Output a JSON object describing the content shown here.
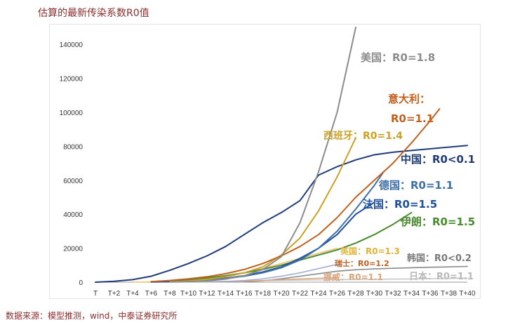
{
  "page": {
    "title": "估算的最新传染系数R0值",
    "source": "数据来源：模型推测，wind，中泰证券研究所"
  },
  "chart_data": {
    "type": "line",
    "title": "",
    "xlabel": "",
    "ylabel": "",
    "ylim": [
      0,
      150000
    ],
    "yticks": [
      0,
      20000,
      40000,
      60000,
      80000,
      100000,
      120000,
      140000
    ],
    "xticks": [
      "T",
      "T+2",
      "T+4",
      "T+6",
      "T+8",
      "T+10",
      "T+12",
      "T+14",
      "T+16",
      "T+18",
      "T+20",
      "T+22",
      "T+24",
      "T+26",
      "T+28",
      "T+30",
      "T+32",
      "T+34",
      "T+36",
      "T+38",
      "T+40"
    ],
    "grid": false,
    "series": [
      {
        "name": "中国",
        "color": "#1f3c78",
        "width": 2,
        "x": [
          0,
          2,
          4,
          6,
          8,
          10,
          12,
          14,
          16,
          18,
          20,
          22,
          24,
          26,
          28,
          30,
          32,
          34,
          36,
          38,
          40
        ],
        "y": [
          0,
          500,
          1500,
          3500,
          7000,
          11000,
          15500,
          21000,
          28000,
          35000,
          41000,
          48000,
          63000,
          68000,
          72000,
          75000,
          76500,
          77500,
          78500,
          79500,
          80500
        ]
      },
      {
        "name": "韩国",
        "color": "#8a8a8a",
        "width": 1.6,
        "x": [
          16,
          18,
          20,
          22,
          24,
          26,
          28,
          30,
          32,
          34,
          36,
          38,
          40
        ],
        "y": [
          200,
          800,
          2000,
          3500,
          5000,
          6500,
          7300,
          7800,
          8200,
          8500,
          8800,
          9000,
          9300
        ]
      },
      {
        "name": "日本",
        "color": "#c8c8c8",
        "width": 1.6,
        "x": [
          8,
          10,
          12,
          14,
          16,
          18,
          20,
          22,
          24,
          26,
          28,
          30,
          32,
          34,
          36,
          38,
          40
        ],
        "y": [
          100,
          250,
          400,
          500,
          700,
          900,
          1050,
          1200,
          1350,
          1500,
          1600,
          1700,
          1800,
          1900,
          2050,
          2200,
          2400
        ]
      },
      {
        "name": "挪威",
        "color": "#d9a47a",
        "width": 1.5,
        "x": [
          12,
          14,
          16,
          18,
          20,
          22,
          24,
          26
        ],
        "y": [
          100,
          300,
          600,
          1000,
          1500,
          1900,
          2300,
          2500
        ]
      },
      {
        "name": "瑞士",
        "color": "#9aa8cc",
        "width": 1.5,
        "x": [
          12,
          14,
          16,
          18,
          20,
          22,
          24,
          26
        ],
        "y": [
          100,
          400,
          1000,
          2000,
          3500,
          5500,
          8000,
          10500
        ]
      },
      {
        "name": "英国",
        "color": "#e8c16a",
        "width": 1.5,
        "x": [
          4,
          6,
          8,
          10,
          12,
          14,
          16,
          18,
          20,
          22,
          24,
          26
        ],
        "y": [
          0,
          200,
          500,
          1000,
          2000,
          3500,
          5500,
          8000,
          11000,
          14000,
          17000,
          20000
        ]
      },
      {
        "name": "伊朗",
        "color": "#4a8a2f",
        "width": 2,
        "x": [
          6,
          8,
          10,
          12,
          14,
          16,
          18,
          20,
          22,
          24,
          26,
          28,
          30,
          32,
          34
        ],
        "y": [
          300,
          800,
          1500,
          2500,
          3800,
          5500,
          7500,
          10000,
          13000,
          16000,
          19000,
          23000,
          28000,
          34000,
          41000
        ]
      },
      {
        "name": "法国",
        "color": "#1f4f9a",
        "width": 2,
        "x": [
          6,
          8,
          10,
          12,
          14,
          16,
          18,
          20,
          22,
          24,
          26,
          28,
          30
        ],
        "y": [
          100,
          300,
          700,
          1300,
          2300,
          3800,
          6000,
          9000,
          14000,
          20000,
          28000,
          40000,
          47000
        ]
      },
      {
        "name": "德国",
        "color": "#3f6fa8",
        "width": 2,
        "x": [
          8,
          10,
          12,
          14,
          16,
          18,
          20,
          22,
          24,
          26,
          28,
          30,
          31
        ],
        "y": [
          200,
          600,
          1200,
          2200,
          3500,
          5500,
          8500,
          13000,
          20000,
          30000,
          43000,
          57000,
          65000
        ]
      },
      {
        "name": "西班牙",
        "color": "#c9a227",
        "width": 2,
        "x": [
          8,
          10,
          12,
          14,
          16,
          18,
          20,
          22,
          24,
          26,
          28
        ],
        "y": [
          200,
          700,
          1700,
          3200,
          5500,
          9000,
          16000,
          26000,
          42000,
          62000,
          85000
        ]
      },
      {
        "name": "意大利",
        "color": "#c0601e",
        "width": 2,
        "x": [
          6,
          8,
          10,
          12,
          14,
          16,
          18,
          20,
          22,
          24,
          26,
          28,
          30,
          32,
          34,
          36,
          37
        ],
        "y": [
          300,
          1000,
          2000,
          3200,
          5000,
          7500,
          11000,
          15500,
          21000,
          28000,
          38000,
          50000,
          60000,
          70000,
          82000,
          95000,
          102000
        ]
      },
      {
        "name": "美国",
        "color": "#8c8c8c",
        "width": 2,
        "x": [
          8,
          10,
          12,
          14,
          16,
          18,
          20,
          22,
          24,
          26,
          28
        ],
        "y": [
          100,
          300,
          800,
          1800,
          3800,
          7500,
          15000,
          35000,
          65000,
          100000,
          150000
        ]
      }
    ],
    "labels": [
      {
        "series": "美国",
        "lines": [
          "美国：R0=1.8"
        ],
        "color": "#8c8c8c"
      },
      {
        "series": "意大利",
        "lines": [
          "意大利：",
          "R0=1.1"
        ],
        "color": "#c0601e"
      },
      {
        "series": "西班牙",
        "lines": [
          "西班牙：R0=1.4"
        ],
        "color": "#c9a227"
      },
      {
        "series": "中国",
        "lines": [
          "中国：R0<0.1"
        ],
        "color": "#1f3c78"
      },
      {
        "series": "德国",
        "lines": [
          "德国：R0=1.1"
        ],
        "color": "#3f6fa8"
      },
      {
        "series": "法国",
        "lines": [
          "法国：R0=1.5"
        ],
        "color": "#1f4f9a"
      },
      {
        "series": "伊朗",
        "lines": [
          "伊朗：R0=1.5"
        ],
        "color": "#4a8a2f"
      },
      {
        "series": "英国",
        "lines": [
          "英国：R0=1.3"
        ],
        "color": "#e0b23a"
      },
      {
        "series": "瑞士",
        "lines": [
          "瑞士：R0=1.2"
        ],
        "color": "#c0601e"
      },
      {
        "series": "挪威",
        "lines": [
          "挪威：R0=1.1"
        ],
        "color": "#d9a47a"
      },
      {
        "series": "韩国",
        "lines": [
          "韩国：R0<0.2"
        ],
        "color": "#7a7a7a"
      },
      {
        "series": "日本",
        "lines": [
          "日本：R0=1.1"
        ],
        "color": "#b8b8b8"
      }
    ]
  }
}
